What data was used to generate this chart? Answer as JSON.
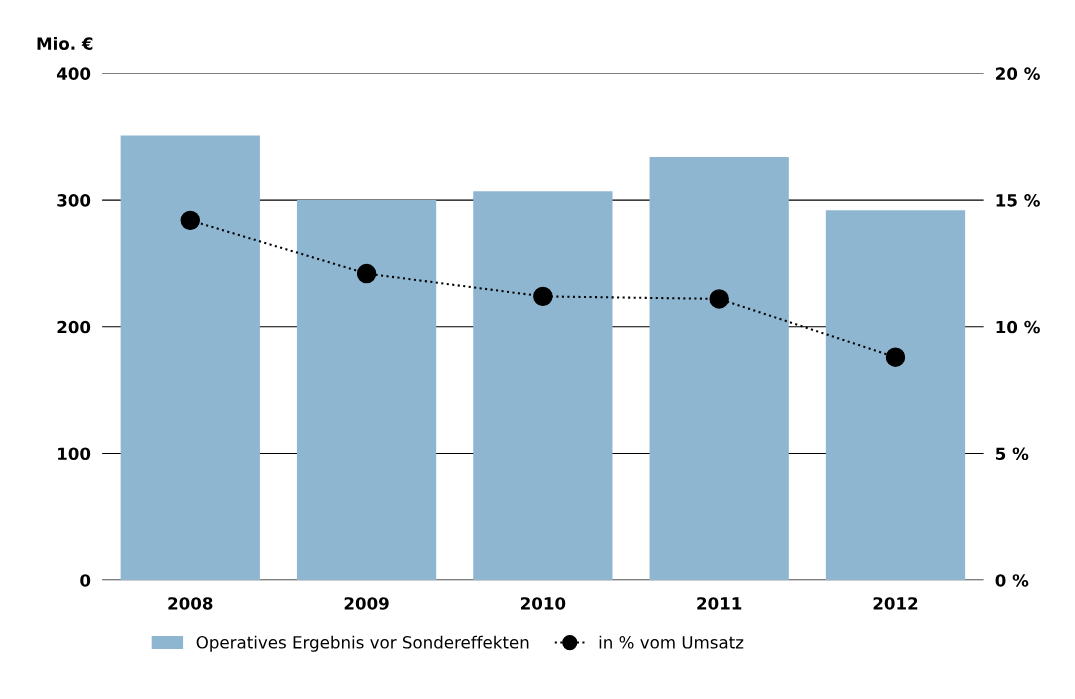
{
  "chart_data": {
    "type": "bar",
    "ylabel": "Mio. €",
    "categories": [
      "2008",
      "2009",
      "2010",
      "2011",
      "2012"
    ],
    "series": [
      {
        "name": "Operatives Ergebnis vor Sondereffekten",
        "color": "#8fb6d1",
        "values": [
          351,
          300,
          307,
          334,
          292
        ]
      },
      {
        "name": "in % vom Umsatz",
        "type": "line",
        "axis": "y2",
        "color": "#000000",
        "marker": "circle",
        "line_style": "dotted",
        "values": [
          14.2,
          12.1,
          11.2,
          11.1,
          8.8
        ]
      }
    ],
    "ylim": [
      0,
      400
    ],
    "yticks": [
      0,
      100,
      200,
      300,
      400
    ],
    "y2lim": [
      0,
      20
    ],
    "y2ticks": [
      {
        "value": 0,
        "label": "0 %"
      },
      {
        "value": 5,
        "label": "5 %"
      },
      {
        "value": 10,
        "label": "10 %"
      },
      {
        "value": 15,
        "label": "15 %"
      },
      {
        "value": 20,
        "label": "20 %"
      }
    ],
    "grid": "y",
    "legend": "bottom"
  }
}
